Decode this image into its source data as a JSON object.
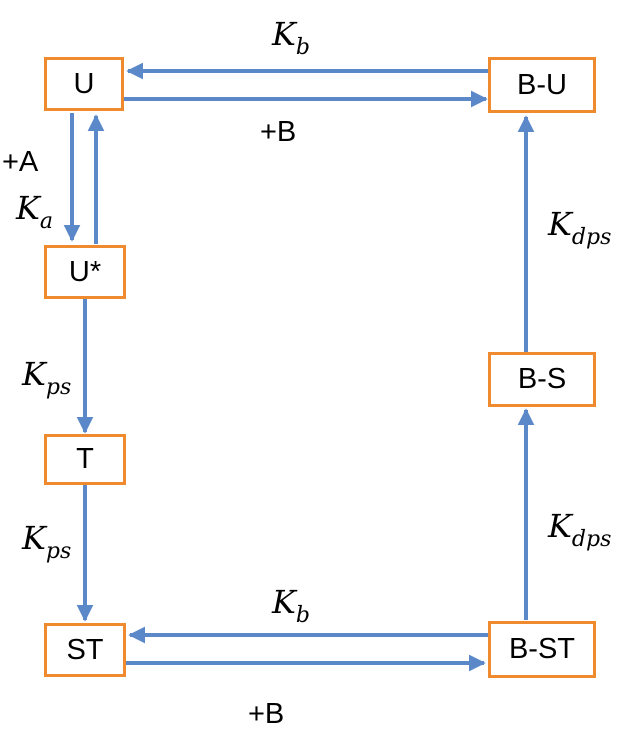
{
  "colors": {
    "arrow": "#5B88C8",
    "node_border": "#F08A2E",
    "text": "#000000"
  },
  "nodes": {
    "U": "U",
    "B_U": "B-U",
    "U_star": "U*",
    "T": "T",
    "ST": "ST",
    "B_S": "B-S",
    "B_ST": "B-ST"
  },
  "labels": {
    "k_b_top": {
      "base": "K",
      "sub": "b"
    },
    "plus_b_top": "+B",
    "plus_a": "+A",
    "k_a": {
      "base": "K",
      "sub": "a"
    },
    "k_dps_upper": {
      "base": "K",
      "sub": "dps"
    },
    "k_ps_upper": {
      "base": "K",
      "sub": "ps"
    },
    "k_ps_lower": {
      "base": "K",
      "sub": "ps"
    },
    "k_dps_lower": {
      "base": "K",
      "sub": "dps"
    },
    "k_b_bottom": {
      "base": "K",
      "sub": "b"
    },
    "plus_b_bottom": "+B"
  }
}
